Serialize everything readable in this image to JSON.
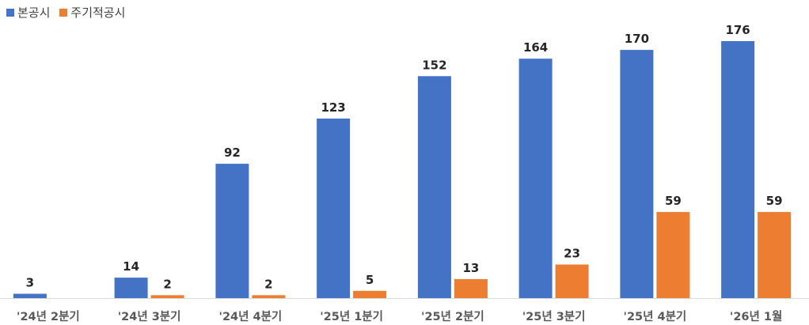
{
  "chart_data": {
    "type": "bar",
    "title": "",
    "xlabel": "",
    "ylabel": "",
    "ylim": [
      0,
      190
    ],
    "grid": false,
    "legend_position": "top-left",
    "categories": [
      "'24년 2분기",
      "'24년 3분기",
      "'24년 4분기",
      "'25년 1분기",
      "'25년 2분기",
      "'25년 3분기",
      "'25년 4분기",
      "'26년 1월"
    ],
    "series": [
      {
        "name": "본공시",
        "color": "#4472C4",
        "values": [
          3,
          14,
          92,
          123,
          152,
          164,
          170,
          176
        ]
      },
      {
        "name": "주기적공시",
        "color": "#ED7D31",
        "values": [
          null,
          2,
          2,
          5,
          13,
          23,
          59,
          59
        ]
      }
    ]
  }
}
